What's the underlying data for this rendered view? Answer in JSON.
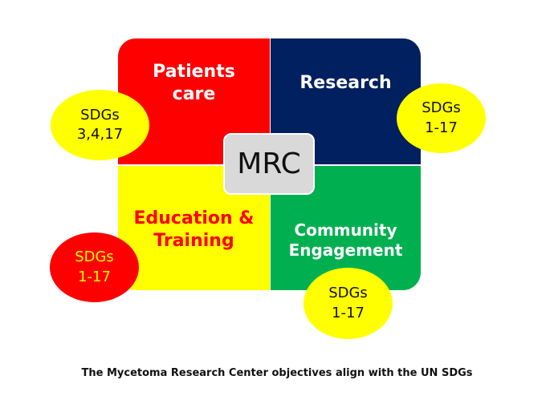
{
  "quadrants": {
    "top_left": {
      "lines": [
        "Patients",
        "care"
      ],
      "color": "#ff0000"
    },
    "top_right": {
      "lines": [
        "Research"
      ],
      "color": "#002060"
    },
    "bottom_left": {
      "lines": [
        "Education &",
        "Training"
      ],
      "color": "#ffff00"
    },
    "bottom_right": {
      "lines": [
        "Community",
        "Engagement"
      ],
      "color": "#00b050"
    }
  },
  "center": {
    "label": "MRC"
  },
  "badges": {
    "top_left": {
      "lines": [
        "SDGs",
        "3,4,17"
      ]
    },
    "top_right": {
      "lines": [
        "SDGs",
        "1-17"
      ]
    },
    "bottom_left": {
      "lines": [
        "SDGs",
        "1-17"
      ]
    },
    "bottom_right": {
      "lines": [
        "SDGs",
        "1-17"
      ]
    }
  },
  "caption": "The Mycetoma Research Center objectives align with the UN SDGs"
}
